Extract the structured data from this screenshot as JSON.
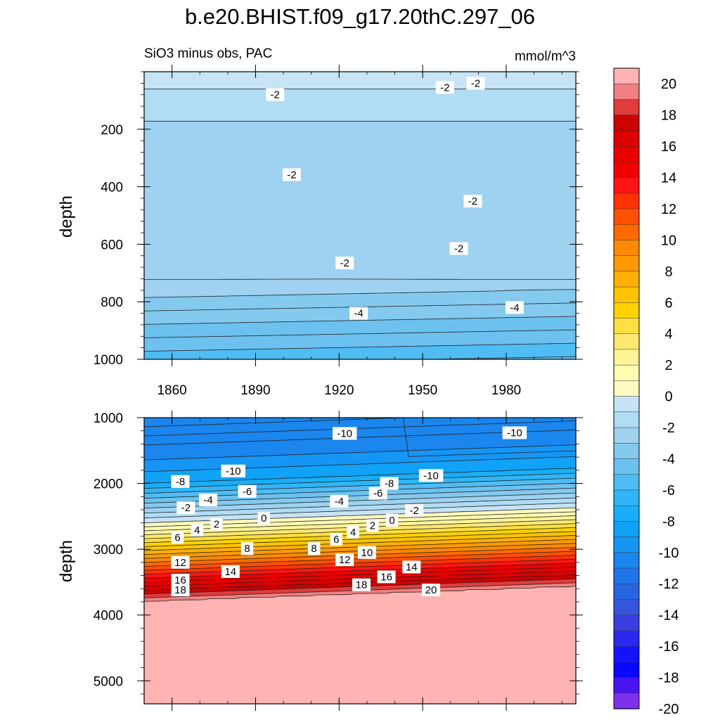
{
  "title": "b.e20.BHIST.f09_g17.20thC.297_06",
  "chart_data": [
    {
      "type": "heatmap",
      "panel": "upper",
      "subtitle_left": "SiO3 minus obs, PAC",
      "subtitle_right": "mmol/m^3",
      "xlabel": "",
      "ylabel": "depth",
      "xlim": [
        1850,
        2005
      ],
      "ylim": [
        1000,
        0
      ],
      "x_ticks": [
        1860,
        1890,
        1920,
        1950,
        1980
      ],
      "y_ticks": [
        200,
        400,
        600,
        800,
        1000
      ],
      "contour_interval": 0.5,
      "contour_labels": [
        {
          "text": "-2",
          "x": 1897,
          "y": 80
        },
        {
          "text": "-2",
          "x": 1958,
          "y": 55
        },
        {
          "text": "-2",
          "x": 1969,
          "y": 40
        },
        {
          "text": "-2",
          "x": 1903,
          "y": 358
        },
        {
          "text": "-2",
          "x": 1968,
          "y": 450
        },
        {
          "text": "-2",
          "x": 1963,
          "y": 615
        },
        {
          "text": "-2",
          "x": 1922,
          "y": 665
        },
        {
          "text": "-4",
          "x": 1927,
          "y": 840
        },
        {
          "text": "-4",
          "x": 1983,
          "y": 820
        }
      ]
    },
    {
      "type": "heatmap",
      "panel": "lower",
      "xlabel": "",
      "ylabel": "depth",
      "xlim": [
        1850,
        2005
      ],
      "ylim": [
        5350,
        1000
      ],
      "x_ticks": [
        1860,
        1890,
        1920,
        1950,
        1980
      ],
      "y_ticks": [
        1000,
        2000,
        3000,
        4000,
        5000
      ],
      "contour_interval": 1,
      "contour_labels": [
        {
          "text": "-10",
          "x": 1922,
          "y": 1240
        },
        {
          "text": "-10",
          "x": 1983,
          "y": 1230
        },
        {
          "text": "-10",
          "x": 1882,
          "y": 1810
        },
        {
          "text": "-10",
          "x": 1953,
          "y": 1880
        },
        {
          "text": "-8",
          "x": 1863,
          "y": 1970
        },
        {
          "text": "-8",
          "x": 1938,
          "y": 2000
        },
        {
          "text": "-6",
          "x": 1887,
          "y": 2120
        },
        {
          "text": "-6",
          "x": 1934,
          "y": 2150
        },
        {
          "text": "-4",
          "x": 1873,
          "y": 2250
        },
        {
          "text": "-4",
          "x": 1920,
          "y": 2270
        },
        {
          "text": "-2",
          "x": 1865,
          "y": 2370
        },
        {
          "text": "-2",
          "x": 1947,
          "y": 2410
        },
        {
          "text": "0",
          "x": 1893,
          "y": 2530
        },
        {
          "text": "0",
          "x": 1939,
          "y": 2560
        },
        {
          "text": "2",
          "x": 1876,
          "y": 2620
        },
        {
          "text": "2",
          "x": 1932,
          "y": 2640
        },
        {
          "text": "4",
          "x": 1869,
          "y": 2710
        },
        {
          "text": "4",
          "x": 1925,
          "y": 2740
        },
        {
          "text": "6",
          "x": 1862,
          "y": 2820
        },
        {
          "text": "6",
          "x": 1919,
          "y": 2850
        },
        {
          "text": "8",
          "x": 1887,
          "y": 2990
        },
        {
          "text": "8",
          "x": 1911,
          "y": 2990
        },
        {
          "text": "10",
          "x": 1930,
          "y": 3050
        },
        {
          "text": "12",
          "x": 1863,
          "y": 3200
        },
        {
          "text": "12",
          "x": 1922,
          "y": 3160
        },
        {
          "text": "14",
          "x": 1881,
          "y": 3340
        },
        {
          "text": "14",
          "x": 1946,
          "y": 3270
        },
        {
          "text": "16",
          "x": 1863,
          "y": 3470
        },
        {
          "text": "16",
          "x": 1937,
          "y": 3420
        },
        {
          "text": "18",
          "x": 1863,
          "y": 3620
        },
        {
          "text": "18",
          "x": 1928,
          "y": 3540
        },
        {
          "text": "20",
          "x": 1953,
          "y": 3620
        }
      ]
    }
  ],
  "colorbar": {
    "labels": [
      "20",
      "18",
      "16",
      "14",
      "12",
      "10",
      "8",
      "6",
      "4",
      "2",
      "0",
      "-2",
      "-4",
      "-6",
      "-8",
      "-10",
      "-12",
      "-14",
      "-16",
      "-18",
      "-20"
    ],
    "colors": [
      "#ffb3b3",
      "#f08080",
      "#e03c3c",
      "#cc0000",
      "#dc0000",
      "#e80000",
      "#f00000",
      "#ff1414",
      "#ff3200",
      "#ff5000",
      "#ff6a00",
      "#ff8a00",
      "#ff9a00",
      "#ffb000",
      "#ffc400",
      "#ffd200",
      "#ffe040",
      "#ffe870",
      "#fff498",
      "#fffbb0",
      "#fffac0",
      "#c6e4f6",
      "#b0dcf4",
      "#9ed2f0",
      "#84c9ee",
      "#6cc1ef",
      "#50bcf4",
      "#30b6f6",
      "#18aef8",
      "#10a2f6",
      "#1696f4",
      "#1a86ee",
      "#1e74e8",
      "#2866e0",
      "#3456dc",
      "#3a3ee0",
      "#2c28ee",
      "#1414fa",
      "#0808fc",
      "#4a14f2",
      "#8030ec"
    ]
  }
}
